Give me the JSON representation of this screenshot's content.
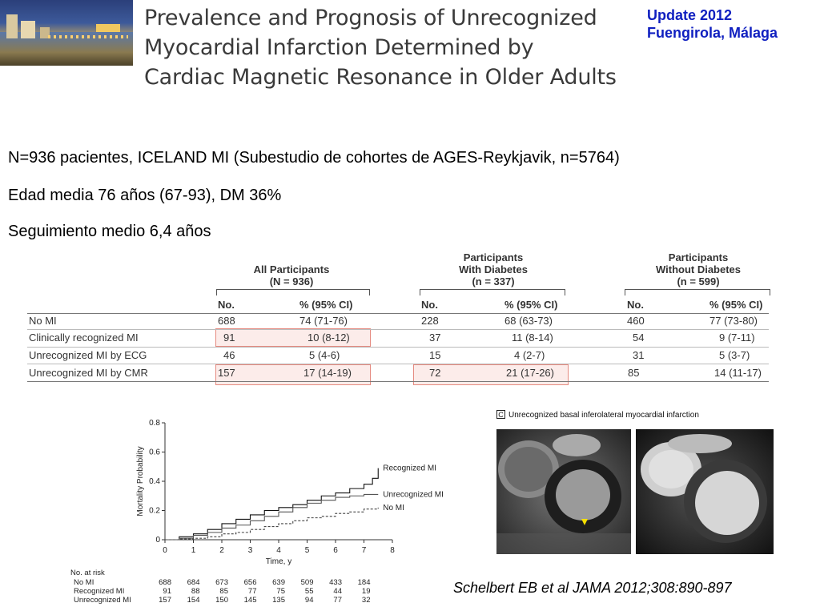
{
  "header": {
    "title_lines": [
      "Prevalence and Prognosis of Unrecognized",
      "Myocardial Infarction Determined by",
      "Cardiac Magnetic Resonance in Older Adults"
    ],
    "update_lines": [
      "Update 2012",
      "Fuengirola, Málaga"
    ]
  },
  "info": [
    "N=936 pacientes, ICELAND MI (Subestudio de cohortes de AGES-Reykjavik, n=5764)",
    "Edad media 76 años (67-93), DM 36%",
    "Seguimiento medio 6,4 años"
  ],
  "table": {
    "groups": [
      {
        "line1": "All Participants",
        "line2": "(N = 936)"
      },
      {
        "line0": "Participants",
        "line1": "With Diabetes",
        "line2": "(n = 337)"
      },
      {
        "line0": "Participants",
        "line1": "Without Diabetes",
        "line2": "(n = 599)"
      }
    ],
    "col_no": "No.",
    "col_pct": "% (95% CI)",
    "rows": [
      {
        "label": "No MI",
        "cells": [
          "688",
          "74 (71-76)",
          "228",
          "68 (63-73)",
          "460",
          "77 (73-80)"
        ]
      },
      {
        "label": "Clinically recognized MI",
        "cells": [
          "91",
          "10 (8-12)",
          "37",
          "11 (8-14)",
          "54",
          "9 (7-11)"
        ]
      },
      {
        "label": "Unrecognized MI by ECG",
        "cells": [
          "46",
          "5 (4-6)",
          "15",
          "4 (2-7)",
          "31",
          "5 (3-7)"
        ]
      },
      {
        "label": "Unrecognized MI by CMR",
        "cells": [
          "157",
          "17 (14-19)",
          "72",
          "21 (17-26)",
          "85",
          "14 (11-17)"
        ]
      }
    ]
  },
  "chart_data": {
    "type": "line",
    "title": "",
    "xlabel": "Time, y",
    "ylabel": "Mortality Probability",
    "xlim": [
      0,
      8
    ],
    "ylim": [
      0,
      0.8
    ],
    "xticks": [
      "0",
      "1",
      "2",
      "3",
      "4",
      "5",
      "6",
      "7",
      "8"
    ],
    "yticks": [
      "0",
      "0.2",
      "0.4",
      "0.6",
      "0.8"
    ],
    "series": [
      {
        "name": "Recognized MI",
        "style": "solid",
        "color": "#111111",
        "x": [
          0,
          0.5,
          1,
          1.5,
          2,
          2.5,
          3,
          3.5,
          4,
          4.5,
          5,
          5.5,
          6,
          6.5,
          7,
          7.3,
          7.5
        ],
        "y": [
          0,
          0.02,
          0.04,
          0.07,
          0.11,
          0.14,
          0.17,
          0.2,
          0.22,
          0.24,
          0.27,
          0.3,
          0.32,
          0.35,
          0.38,
          0.42,
          0.49
        ]
      },
      {
        "name": "Unrecognized MI",
        "style": "solid",
        "color": "#555555",
        "x": [
          0,
          0.5,
          1,
          1.5,
          2,
          2.5,
          3,
          3.5,
          4,
          4.5,
          5,
          5.5,
          6,
          6.5,
          7,
          7.5
        ],
        "y": [
          0,
          0.01,
          0.03,
          0.05,
          0.08,
          0.1,
          0.13,
          0.16,
          0.19,
          0.22,
          0.25,
          0.27,
          0.29,
          0.3,
          0.31,
          0.31
        ]
      },
      {
        "name": "No MI",
        "style": "dashed",
        "color": "#444444",
        "x": [
          0,
          0.5,
          1,
          1.5,
          2,
          2.5,
          3,
          3.5,
          4,
          4.5,
          5,
          5.5,
          6,
          6.5,
          7,
          7.5
        ],
        "y": [
          0,
          0.005,
          0.01,
          0.02,
          0.04,
          0.05,
          0.07,
          0.09,
          0.11,
          0.13,
          0.15,
          0.16,
          0.18,
          0.19,
          0.21,
          0.22
        ]
      }
    ],
    "risk_table": {
      "title": "No. at risk",
      "rows": [
        {
          "label": "No MI",
          "values": [
            "688",
            "684",
            "673",
            "656",
            "639",
            "509",
            "433",
            "184"
          ]
        },
        {
          "label": "Recognized MI",
          "values": [
            "91",
            "88",
            "85",
            "77",
            "75",
            "55",
            "44",
            "19"
          ]
        },
        {
          "label": "Unrecognized MI",
          "values": [
            "157",
            "154",
            "150",
            "145",
            "135",
            "94",
            "77",
            "32"
          ]
        }
      ]
    }
  },
  "mri": {
    "caption_letter": "C",
    "caption": "Unrecognized basal inferolateral myocardial infarction"
  },
  "citation": "Schelbert EB et al JAMA 2012;308:890-897"
}
